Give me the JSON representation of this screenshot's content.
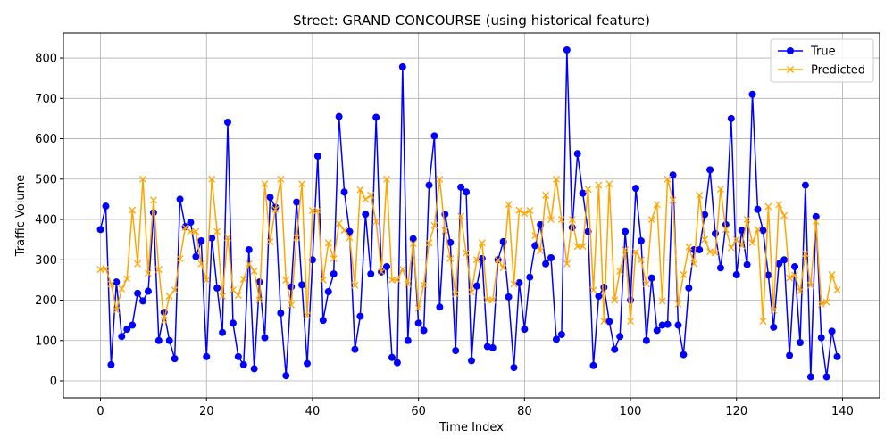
{
  "chart_data": {
    "type": "line",
    "title": "Street: GRAND CONCOURSE (using historical feature)",
    "xlabel": "Time Index",
    "ylabel": "Traffic Volume",
    "xlim": [
      -7,
      147
    ],
    "ylim": [
      -42,
      862
    ],
    "xticks": [
      0,
      20,
      40,
      60,
      80,
      100,
      120,
      140
    ],
    "yticks": [
      0,
      100,
      200,
      300,
      400,
      500,
      600,
      700,
      800
    ],
    "grid": true,
    "legend_position": "top-right",
    "series": [
      {
        "name": "True",
        "color": "#0000ff",
        "marker": "circle",
        "values": [
          375,
          433,
          40,
          245,
          110,
          128,
          138,
          217,
          198,
          222,
          417,
          100,
          170,
          100,
          55,
          450,
          382,
          393,
          308,
          347,
          60,
          354,
          230,
          120,
          641,
          143,
          60,
          40,
          325,
          30,
          245,
          107,
          455,
          430,
          168,
          13,
          233,
          443,
          238,
          43,
          300,
          557,
          150,
          221,
          265,
          655,
          468,
          370,
          78,
          160,
          413,
          265,
          653,
          270,
          283,
          58,
          45,
          778,
          100,
          352,
          143,
          125,
          485,
          607,
          183,
          413,
          343,
          75,
          480,
          468,
          50,
          235,
          303,
          85,
          82,
          300,
          345,
          208,
          33,
          243,
          128,
          257,
          335,
          387,
          290,
          305,
          103,
          115,
          820,
          380,
          563,
          465,
          370,
          38,
          210,
          232,
          147,
          78,
          110,
          370,
          200,
          477,
          347,
          100,
          255,
          125,
          138,
          140,
          510,
          138,
          65,
          230,
          325,
          325,
          412,
          523,
          365,
          280,
          387,
          650,
          263,
          373,
          288,
          710,
          425,
          373,
          262,
          133,
          290,
          300,
          63,
          283,
          95,
          485,
          10,
          407,
          107,
          10,
          123,
          60
        ]
      },
      {
        "name": "Predicted",
        "color": "#ffa500",
        "marker": "x",
        "values": [
          276,
          278,
          240,
          175,
          228,
          253,
          423,
          290,
          500,
          267,
          448,
          276,
          150,
          210,
          225,
          303,
          380,
          370,
          370,
          290,
          250,
          500,
          370,
          210,
          355,
          225,
          212,
          252,
          290,
          272,
          200,
          488,
          345,
          425,
          500,
          250,
          188,
          355,
          488,
          162,
          422,
          422,
          250,
          342,
          303,
          390,
          373,
          355,
          237,
          474,
          450,
          460,
          395,
          270,
          500,
          250,
          250,
          277,
          240,
          340,
          180,
          238,
          342,
          385,
          500,
          372,
          303,
          215,
          408,
          317,
          220,
          300,
          342,
          200,
          200,
          300,
          280,
          437,
          240,
          423,
          415,
          422,
          360,
          322,
          460,
          400,
          500,
          400,
          290,
          400,
          333,
          333,
          475,
          225,
          485,
          148,
          488,
          200,
          272,
          325,
          148,
          320,
          300,
          240,
          400,
          437,
          198,
          500,
          448,
          190,
          263,
          332,
          290,
          460,
          350,
          320,
          317,
          475,
          375,
          330,
          350,
          335,
          400,
          342,
          375,
          148,
          432,
          175,
          437,
          410,
          255,
          262,
          222,
          315,
          237,
          395,
          190,
          195,
          263,
          225
        ]
      }
    ]
  }
}
